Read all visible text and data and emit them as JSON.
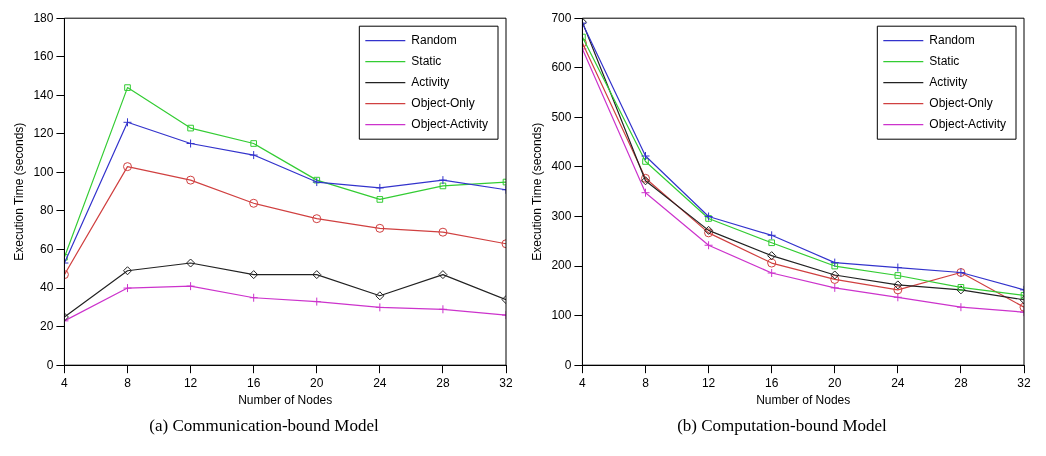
{
  "chart_data": [
    {
      "type": "line",
      "xlabel": "Number of Nodes",
      "ylabel": "Execution Time (seconds)",
      "annotations": [
        "(a)  Communication-bound Model"
      ],
      "x": [
        4,
        8,
        12,
        16,
        20,
        24,
        28,
        32
      ],
      "xlim": [
        4,
        32
      ],
      "xticks": [
        4,
        8,
        12,
        16,
        20,
        24,
        28,
        32
      ],
      "ylim": [
        0,
        180
      ],
      "yticks": [
        0,
        20,
        40,
        60,
        80,
        100,
        120,
        140,
        160,
        180
      ],
      "grid": false,
      "legend": "top right",
      "line_style": "solid",
      "series": [
        {
          "name": "Random",
          "color": "#3333cc",
          "marker": "cross",
          "values": [
            53,
            126,
            115,
            109,
            95,
            92,
            96,
            91
          ]
        },
        {
          "name": "Static",
          "color": "#33cc33",
          "marker": "square",
          "values": [
            56,
            144,
            123,
            115,
            96,
            86,
            93,
            95
          ]
        },
        {
          "name": "Activity",
          "color": "#222222",
          "marker": "diamond",
          "values": [
            25,
            49,
            53,
            47,
            47,
            36,
            47,
            34
          ]
        },
        {
          "name": "Object-Only",
          "color": "#d04040",
          "marker": "circle",
          "values": [
            47,
            103,
            96,
            84,
            76,
            71,
            69,
            63
          ]
        },
        {
          "name": "Object-Activity",
          "color": "#cc33cc",
          "marker": "cross",
          "values": [
            23,
            40,
            41,
            35,
            33,
            30,
            29,
            26
          ]
        }
      ]
    },
    {
      "type": "line",
      "xlabel": "Number of Nodes",
      "ylabel": "Execution Time (seconds)",
      "annotations": [
        "(b)  Computation-bound Model"
      ],
      "x": [
        4,
        8,
        12,
        16,
        20,
        24,
        28,
        32
      ],
      "xlim": [
        4,
        32
      ],
      "xticks": [
        4,
        8,
        12,
        16,
        20,
        24,
        28,
        32
      ],
      "ylim": [
        0,
        700
      ],
      "yticks": [
        0,
        100,
        200,
        300,
        400,
        500,
        600,
        700
      ],
      "grid": false,
      "legend": "top right",
      "line_style": "solid",
      "series": [
        {
          "name": "Random",
          "color": "#3333cc",
          "marker": "cross",
          "values": [
            690,
            422,
            300,
            262,
            207,
            197,
            187,
            152
          ]
        },
        {
          "name": "Static",
          "color": "#33cc33",
          "marker": "square",
          "values": [
            662,
            411,
            296,
            247,
            200,
            181,
            157,
            141
          ]
        },
        {
          "name": "Activity",
          "color": "#222222",
          "marker": "diamond",
          "values": [
            692,
            372,
            272,
            221,
            182,
            162,
            152,
            132
          ]
        },
        {
          "name": "Object-Only",
          "color": "#d04040",
          "marker": "circle",
          "values": [
            650,
            377,
            267,
            206,
            173,
            152,
            187,
            117
          ]
        },
        {
          "name": "Object-Activity",
          "color": "#cc33cc",
          "marker": "cross",
          "values": [
            638,
            348,
            242,
            186,
            156,
            137,
            117,
            107
          ]
        }
      ]
    }
  ]
}
